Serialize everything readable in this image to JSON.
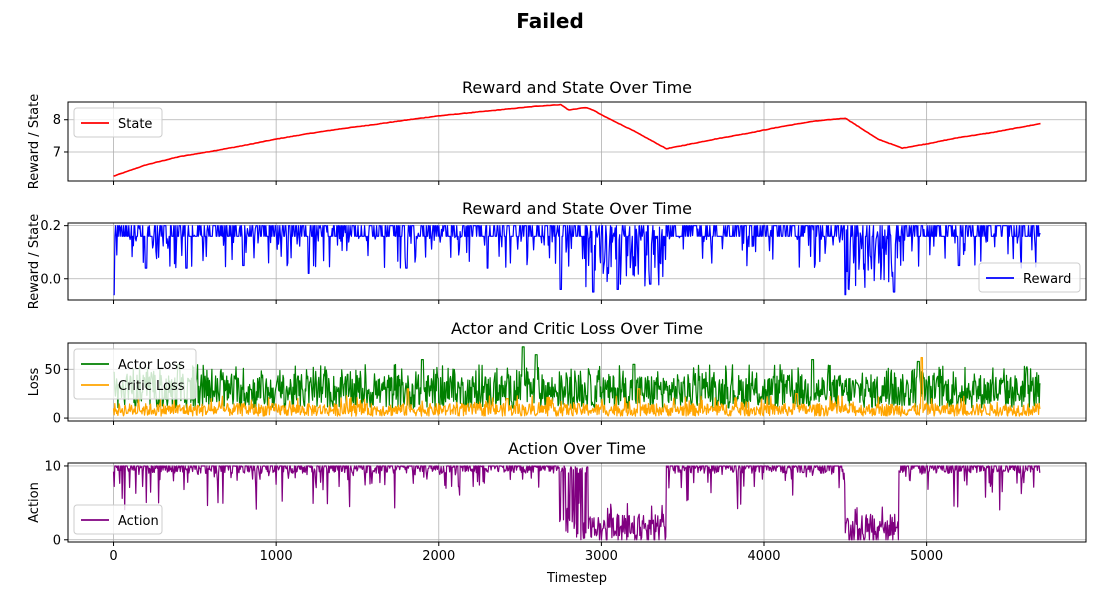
{
  "suptitle": "Failed",
  "colors": {
    "state": "#ff0000",
    "reward": "#0000ff",
    "actor": "#008000",
    "critic": "#ffa500",
    "action": "#800080",
    "grid": "#b0b0b0"
  },
  "chart_data": [
    {
      "type": "line",
      "title": "Reward and State Over Time",
      "xlabel": "",
      "ylabel": "Reward / State",
      "xlim": [
        -280,
        5980
      ],
      "ylim": [
        6.1,
        8.55
      ],
      "xticks": [
        0,
        1000,
        2000,
        3000,
        4000,
        5000
      ],
      "yticks": [
        7,
        8
      ],
      "grid": true,
      "legend": "upper-left",
      "series": [
        {
          "name": "State",
          "style": "smooth",
          "x": [
            0,
            200,
            400,
            600,
            800,
            1000,
            1200,
            1400,
            1600,
            1800,
            2000,
            2200,
            2400,
            2600,
            2750,
            2800,
            2900,
            2950,
            3000,
            3200,
            3400,
            3500,
            3700,
            3900,
            4100,
            4300,
            4500,
            4700,
            4850,
            5000,
            5200,
            5400,
            5700
          ],
          "y": [
            6.25,
            6.6,
            6.85,
            7.02,
            7.2,
            7.4,
            7.57,
            7.72,
            7.85,
            7.99,
            8.12,
            8.22,
            8.32,
            8.42,
            8.47,
            8.3,
            8.38,
            8.3,
            8.15,
            7.65,
            7.1,
            7.2,
            7.4,
            7.58,
            7.78,
            7.95,
            8.05,
            7.4,
            7.12,
            7.25,
            7.45,
            7.6,
            7.88
          ]
        }
      ]
    },
    {
      "type": "line",
      "title": "Reward and State Over Time",
      "xlabel": "",
      "ylabel": "Reward / State",
      "xlim": [
        -280,
        5980
      ],
      "ylim": [
        -0.08,
        0.21
      ],
      "xticks": [
        0,
        1000,
        2000,
        3000,
        4000,
        5000
      ],
      "yticks": [
        0.0,
        0.2
      ],
      "ytick_labels": [
        "0.0",
        "0.2"
      ],
      "grid": true,
      "legend": "lower-right",
      "series": [
        {
          "name": "Reward",
          "style": "noisy",
          "base": 0.17,
          "base_range": [
            0.16,
            0.2
          ],
          "dips": [
            [
              0,
              0.16,
              -0.06
            ],
            [
              200,
              0.2,
              0.04
            ],
            [
              450,
              0.2,
              0.04
            ],
            [
              800,
              0.2,
              0.05
            ],
            [
              1200,
              0.2,
              0.02
            ],
            [
              1800,
              0.2,
              0.04
            ],
            [
              2300,
              0.2,
              0.04
            ],
            [
              2750,
              0.2,
              -0.04
            ],
            [
              2950,
              0.2,
              -0.05
            ],
            [
              3100,
              0.2,
              -0.04
            ],
            [
              3300,
              0.2,
              -0.02
            ],
            [
              4500,
              0.2,
              -0.06
            ],
            [
              4800,
              0.2,
              -0.05
            ],
            [
              5200,
              0.2,
              0.05
            ],
            [
              5700,
              0.2,
              0.17
            ]
          ],
          "x_range": [
            0,
            5700
          ]
        }
      ]
    },
    {
      "type": "line",
      "title": "Actor and Critic Loss Over Time",
      "xlabel": "",
      "ylabel": "Loss",
      "xlim": [
        -280,
        5980
      ],
      "ylim": [
        -3,
        77
      ],
      "xticks": [
        0,
        1000,
        2000,
        3000,
        4000,
        5000
      ],
      "yticks": [
        0,
        50
      ],
      "grid": true,
      "legend": "upper-left",
      "series": [
        {
          "name": "Actor Loss",
          "style": "noisy",
          "base_range": [
            10,
            45
          ],
          "peaks": [
            [
              0,
              47
            ],
            [
              400,
              55
            ],
            [
              1900,
              60
            ],
            [
              2520,
              73
            ],
            [
              2600,
              65
            ],
            [
              3200,
              55
            ],
            [
              4300,
              60
            ],
            [
              4950,
              58
            ],
            [
              5700,
              35
            ]
          ],
          "x_range": [
            0,
            5700
          ]
        },
        {
          "name": "Critic Loss",
          "style": "noisy",
          "base_range": [
            2,
            15
          ],
          "peaks": [
            [
              1810,
              30
            ],
            [
              2420,
              20
            ],
            [
              3230,
              30
            ],
            [
              4200,
              25
            ],
            [
              4970,
              62
            ],
            [
              5700,
              10
            ]
          ],
          "x_range": [
            0,
            5700
          ]
        }
      ]
    },
    {
      "type": "line",
      "title": "Action Over Time",
      "xlabel": "Timestep",
      "ylabel": "Action",
      "xlim": [
        -280,
        5980
      ],
      "ylim": [
        -0.3,
        10.4
      ],
      "xticks": [
        0,
        1000,
        2000,
        3000,
        4000,
        5000
      ],
      "yticks": [
        0,
        10
      ],
      "grid": true,
      "legend": "lower-left",
      "series": [
        {
          "name": "Action",
          "style": "regimes",
          "regimes": [
            [
              0,
              2740,
              "high"
            ],
            [
              2740,
              2920,
              "mixed"
            ],
            [
              2920,
              3400,
              "low"
            ],
            [
              3400,
              4500,
              "high"
            ],
            [
              4500,
              4830,
              "low"
            ],
            [
              4830,
              5700,
              "high"
            ]
          ]
        }
      ]
    }
  ]
}
